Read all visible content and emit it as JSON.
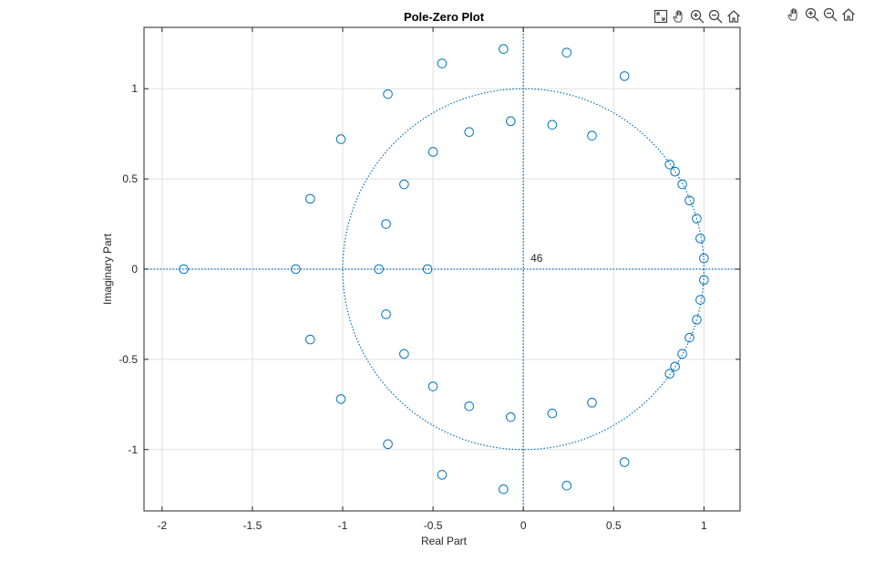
{
  "figure": {
    "toolbar": {
      "axes_buttons": [
        "restore-view-icon",
        "pan-icon",
        "zoom-in-icon",
        "zoom-out-icon",
        "home-icon"
      ],
      "figure_buttons": [
        "pan-icon",
        "zoom-in-icon",
        "zoom-out-icon",
        "home-icon"
      ]
    },
    "colors": {
      "marker": "#0072BD",
      "axis": "#262626",
      "grid": "#dfdfdf",
      "background": "#ffffff"
    }
  },
  "chart_data": {
    "type": "scatter",
    "title": "Pole-Zero Plot",
    "xlabel": "Real Part",
    "ylabel": "Imaginary Part",
    "xlim": [
      -2.1,
      1.2
    ],
    "ylim": [
      -1.34,
      1.34
    ],
    "xticks": [
      -2,
      -1.5,
      -1,
      -0.5,
      0,
      0.5,
      1
    ],
    "xtick_labels": [
      "-2",
      "-1.5",
      "-1",
      "-0.5",
      "0",
      "0.5",
      "1"
    ],
    "yticks": [
      -1,
      -0.5,
      0,
      0.5,
      1
    ],
    "ytick_labels": [
      "-1",
      "-0.5",
      "0",
      "0.5",
      "1"
    ],
    "grid": true,
    "unit_circle": true,
    "annotation": {
      "text": "46",
      "x": 0.04,
      "y": 0.04
    },
    "series": [
      {
        "marker": "circle",
        "points": [
          [
            -1.88,
            0
          ],
          [
            -1.26,
            0
          ],
          [
            -0.8,
            0
          ],
          [
            -0.53,
            0
          ],
          [
            -1.18,
            0.39
          ],
          [
            -1.18,
            -0.39
          ],
          [
            -1.01,
            0.72
          ],
          [
            -1.01,
            -0.72
          ],
          [
            -0.75,
            0.97
          ],
          [
            -0.75,
            -0.97
          ],
          [
            -0.45,
            1.14
          ],
          [
            -0.45,
            -1.14
          ],
          [
            -0.11,
            1.22
          ],
          [
            -0.11,
            -1.22
          ],
          [
            0.24,
            1.2
          ],
          [
            0.24,
            -1.2
          ],
          [
            0.56,
            1.07
          ],
          [
            0.56,
            -1.07
          ],
          [
            -0.76,
            0.25
          ],
          [
            -0.76,
            -0.25
          ],
          [
            -0.66,
            0.47
          ],
          [
            -0.66,
            -0.47
          ],
          [
            -0.5,
            0.65
          ],
          [
            -0.5,
            -0.65
          ],
          [
            -0.3,
            0.76
          ],
          [
            -0.3,
            -0.76
          ],
          [
            -0.07,
            0.82
          ],
          [
            -0.07,
            -0.82
          ],
          [
            0.16,
            0.8
          ],
          [
            0.16,
            -0.8
          ],
          [
            0.38,
            0.74
          ],
          [
            0.38,
            -0.74
          ],
          [
            0.81,
            0.58
          ],
          [
            0.81,
            -0.58
          ],
          [
            0.84,
            0.54
          ],
          [
            0.84,
            -0.54
          ],
          [
            0.88,
            0.47
          ],
          [
            0.88,
            -0.47
          ],
          [
            0.92,
            0.38
          ],
          [
            0.92,
            -0.38
          ],
          [
            0.96,
            0.28
          ],
          [
            0.96,
            -0.28
          ],
          [
            0.98,
            0.17
          ],
          [
            0.98,
            -0.17
          ],
          [
            1.0,
            0.06
          ],
          [
            1.0,
            -0.06
          ]
        ]
      }
    ]
  }
}
